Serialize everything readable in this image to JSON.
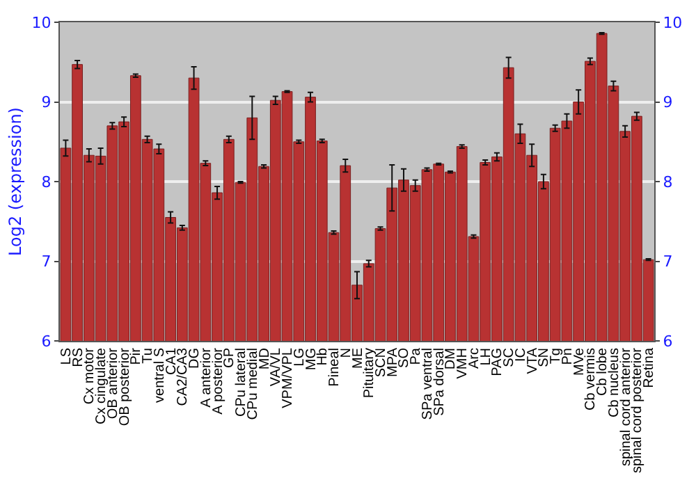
{
  "chart_data": {
    "type": "bar",
    "ylabel": "Log2 (expression)",
    "categories": [
      "LS",
      "RS",
      "Cx motor",
      "Cx cingulate",
      "OB anterior",
      "OB posterior",
      "Pir",
      "Tu",
      "ventral S",
      "CA1",
      "CA2/CA3",
      "DG",
      "A anterior",
      "A posterior",
      "GP",
      "CPu lateral",
      "CPu medial",
      "MD",
      "VA/VL",
      "VPM/VPL",
      "LG",
      "MG",
      "Hb",
      "Pineal",
      "N",
      "ME",
      "Pituitary",
      "SCN",
      "MPA",
      "SO",
      "Pa",
      "SPa ventral",
      "SPa dorsal",
      "DM",
      "VMH",
      "Arc",
      "LH",
      "PAG",
      "SC",
      "IC",
      "VTA",
      "SN",
      "Tg",
      "Pn",
      "MVe",
      "Cb vermis",
      "Cb lobe",
      "Cb nucleus",
      "spinal cord anterior",
      "spinal cord posterior",
      "Retina"
    ],
    "values": [
      8.42,
      9.47,
      8.33,
      8.32,
      8.7,
      8.75,
      9.33,
      8.53,
      8.41,
      7.55,
      7.42,
      9.3,
      8.23,
      7.86,
      8.53,
      7.99,
      8.8,
      8.19,
      9.02,
      9.13,
      8.5,
      9.06,
      8.51,
      7.36,
      8.2,
      6.7,
      6.97,
      7.41,
      7.92,
      8.02,
      7.95,
      8.15,
      8.22,
      8.12,
      8.44,
      7.31,
      8.24,
      8.31,
      9.43,
      8.6,
      8.33,
      8.0,
      8.67,
      8.76,
      9.0,
      9.51,
      9.86,
      9.2,
      8.63,
      8.82,
      7.02
    ],
    "errors": [
      0.1,
      0.05,
      0.08,
      0.1,
      0.04,
      0.06,
      0.02,
      0.04,
      0.06,
      0.07,
      0.03,
      0.14,
      0.03,
      0.08,
      0.04,
      0.01,
      0.27,
      0.02,
      0.05,
      0.01,
      0.02,
      0.06,
      0.02,
      0.02,
      0.08,
      0.17,
      0.04,
      0.02,
      0.29,
      0.14,
      0.07,
      0.02,
      0.01,
      0.01,
      0.02,
      0.02,
      0.03,
      0.05,
      0.13,
      0.12,
      0.14,
      0.09,
      0.04,
      0.09,
      0.15,
      0.04,
      0.01,
      0.06,
      0.07,
      0.05,
      0.01
    ],
    "color": "#b83232",
    "ylim": [
      6,
      10
    ],
    "yticks": [
      6,
      7,
      8,
      9,
      10
    ],
    "y2lim": [
      6,
      10
    ],
    "y2ticks": [
      6,
      7,
      8,
      9,
      10
    ],
    "grid": "y"
  }
}
